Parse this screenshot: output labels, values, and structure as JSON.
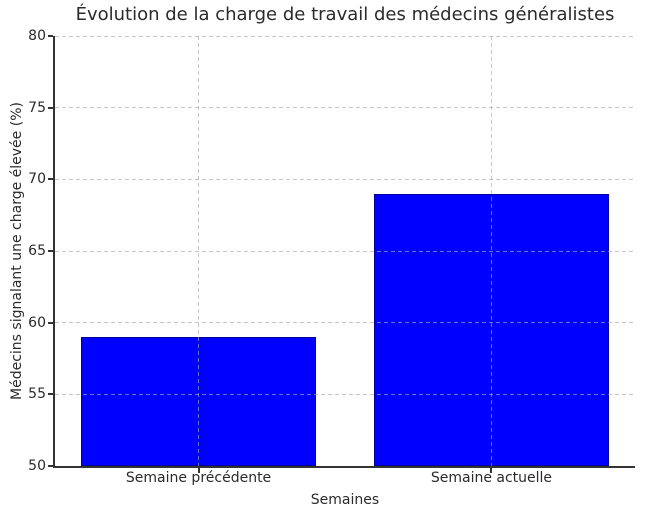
{
  "chart_data": {
    "type": "bar",
    "title": "Évolution de la charge de travail des médecins généralistes",
    "xlabel": "Semaines",
    "ylabel": "Médecins signalant une charge élevée (%)",
    "categories": [
      "Semaine précédente",
      "Semaine actuelle"
    ],
    "values": [
      59,
      69
    ],
    "bar_positions": [
      0,
      1
    ],
    "bar_width": 0.8,
    "ylim": [
      50,
      80
    ],
    "yticks": [
      50,
      55,
      60,
      65,
      70,
      75,
      80
    ],
    "xlim": [
      -0.49,
      1.49
    ],
    "grid": true,
    "grid_linestyle": "dashed",
    "legend": "none",
    "colors": {
      "bar_fill": "#0000ff",
      "bar_edge": "#000099",
      "grid": "#a8a8a8",
      "axis": "#333333",
      "text": "#2b2b2b",
      "background": "#ffffff"
    }
  }
}
